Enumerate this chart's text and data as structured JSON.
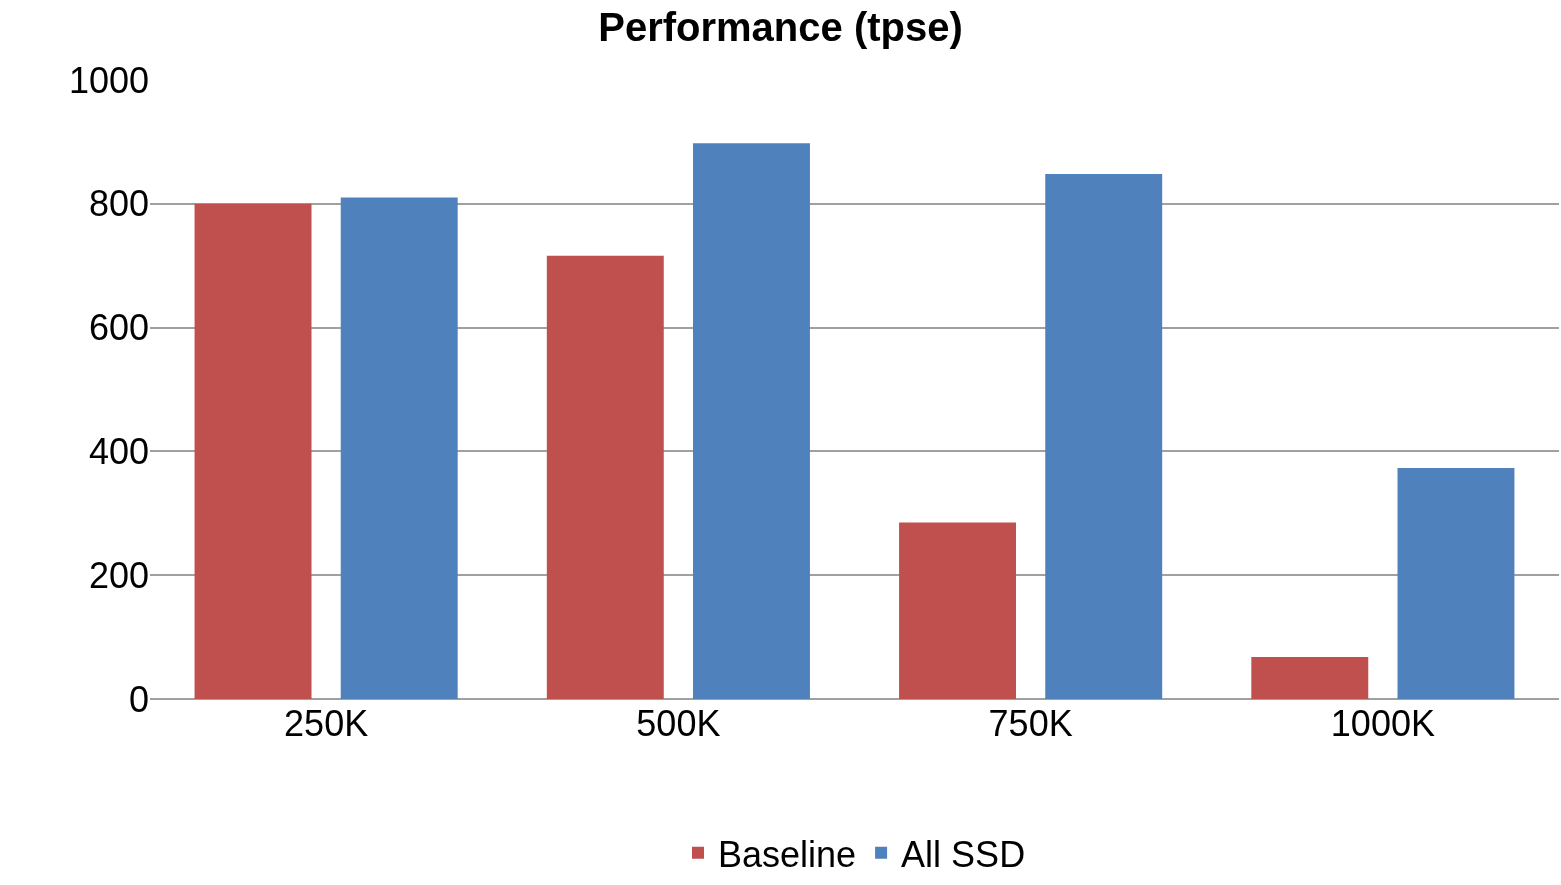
{
  "chart_data": {
    "type": "bar",
    "title": "Performance (tpse)",
    "categories": [
      "250K",
      "500K",
      "750K",
      "1000K"
    ],
    "series": [
      {
        "name": "Baseline",
        "color": "#c0504d",
        "values": [
          800,
          716,
          285,
          68
        ]
      },
      {
        "name": "All SSD",
        "color": "#4f81bd",
        "values": [
          810,
          898,
          848,
          373
        ]
      }
    ],
    "ylim": [
      0,
      1000
    ],
    "yticks": [
      0,
      200,
      400,
      600,
      800,
      1000
    ],
    "grid": "y",
    "legend": "bottom"
  }
}
